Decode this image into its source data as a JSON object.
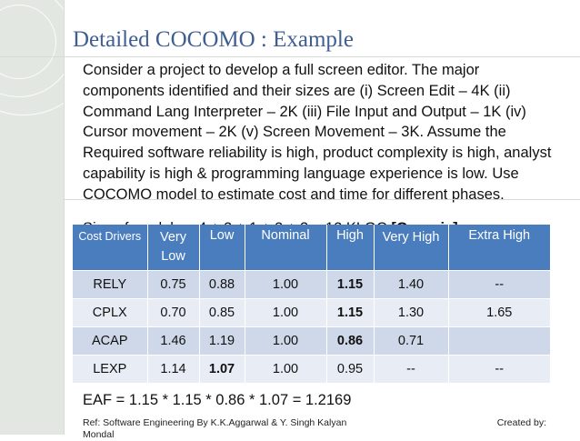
{
  "slide": {
    "title": "Detailed COCOMO : Example",
    "body": "Consider a project to develop a full screen editor. The major components identified and their sizes are (i) Screen Edit – 4K (ii) Command Lang Interpreter – 2K (iii) File Input and Output – 1K (iv) Cursor movement – 2K (v) Screen Movement – 3K. Assume the Required software reliability is high, product complexity is high, analyst capability is high & programming language experience is low. Use COCOMO model to estimate cost and time for different phases.",
    "partial_line": "Size of models = 4 + 2 + 1 + 2 + 3 = 12 KLOC",
    "partial_line_bold": "[Organic]",
    "eaf": "EAF = 1.15 * 1.15 * 0.86 * 1.07 = 1.2169",
    "footer_left": "Ref: Software Engineering By K.K.Aggarwal & Y. Singh Kalyan Mondal",
    "footer_right": "Created by:"
  },
  "table": {
    "headers": [
      "Cost Drivers",
      "Very Low",
      "Low",
      "Nominal",
      "High",
      "Very High",
      "Extra High"
    ],
    "rows": [
      [
        "RELY",
        "0.75",
        "0.88",
        "1.00",
        "1.15",
        "1.40",
        "--"
      ],
      [
        "CPLX",
        "0.70",
        "0.85",
        "1.00",
        "1.15",
        "1.30",
        "1.65"
      ],
      [
        "ACAP",
        "1.46",
        "1.19",
        "1.00",
        "0.86",
        "0.71",
        ""
      ],
      [
        "LEXP",
        "1.14",
        "1.07",
        "1.00",
        "0.95",
        "--",
        "--"
      ]
    ]
  },
  "colors": {
    "title": "#3f5e91",
    "header_bg": "#4a7dbd",
    "row_odd": "#cfd8e9",
    "row_even": "#e8edf5",
    "sidebar": "#e3e7e2"
  }
}
